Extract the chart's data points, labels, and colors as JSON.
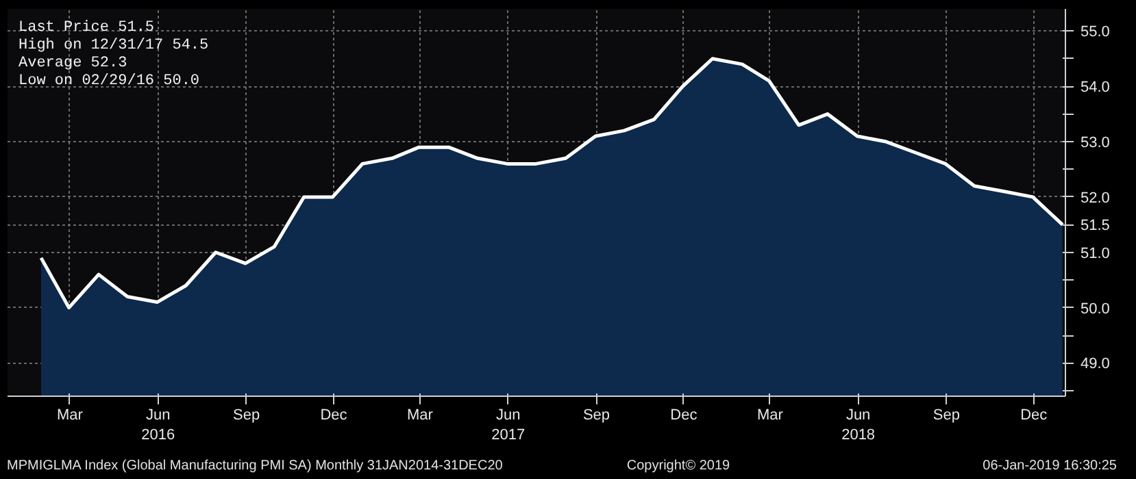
{
  "chart_data": {
    "type": "area",
    "x": [
      "2016-01-31",
      "2016-02-29",
      "2016-03-31",
      "2016-04-30",
      "2016-05-31",
      "2016-06-30",
      "2016-07-31",
      "2016-08-31",
      "2016-09-30",
      "2016-10-31",
      "2016-11-30",
      "2016-12-31",
      "2017-01-31",
      "2017-02-28",
      "2017-03-31",
      "2017-04-30",
      "2017-05-31",
      "2017-06-30",
      "2017-07-31",
      "2017-08-31",
      "2017-09-30",
      "2017-10-31",
      "2017-11-30",
      "2017-12-31",
      "2018-01-31",
      "2018-02-28",
      "2018-03-31",
      "2018-04-30",
      "2018-05-31",
      "2018-06-30",
      "2018-07-31",
      "2018-08-31",
      "2018-09-30",
      "2018-10-31",
      "2018-11-30",
      "2018-12-31"
    ],
    "series": [
      {
        "color": "#0d2a4d",
        "values": [
          50.9,
          50.0,
          50.6,
          50.2,
          50.1,
          50.4,
          51.0,
          50.8,
          51.1,
          52.0,
          52.0,
          52.6,
          52.7,
          52.9,
          52.9,
          52.7,
          52.6,
          52.6,
          52.7,
          53.1,
          53.2,
          53.4,
          54.0,
          54.5,
          54.4,
          54.1,
          53.3,
          53.5,
          53.1,
          53.0,
          52.8,
          52.6,
          52.2,
          52.1,
          52.0,
          51.5
        ]
      }
    ],
    "xlim": [
      "2015-12-27",
      "2019-01-03"
    ],
    "xticks": [
      {
        "value": "2016-03-01",
        "label": "Mar"
      },
      {
        "value": "2016-06-01",
        "label": "Jun\n2016"
      },
      {
        "value": "2016-09-01",
        "label": "Sep"
      },
      {
        "value": "2016-12-01",
        "label": "Dec"
      },
      {
        "value": "2017-03-01",
        "label": "Mar"
      },
      {
        "value": "2017-06-01",
        "label": "Jun\n2017"
      },
      {
        "value": "2017-09-01",
        "label": "Sep"
      },
      {
        "value": "2017-12-01",
        "label": "Dec"
      },
      {
        "value": "2018-03-01",
        "label": "Mar"
      },
      {
        "value": "2018-06-01",
        "label": "Jun\n2018"
      },
      {
        "value": "2018-09-01",
        "label": "Sep"
      },
      {
        "value": "2018-12-01",
        "label": "Dec"
      }
    ],
    "ylim": [
      48.4,
      55.4
    ],
    "yticks": [
      {
        "value": 48.5,
        "label": null
      },
      {
        "value": 49,
        "label": "49.0"
      },
      {
        "value": 49.5,
        "label": null
      },
      {
        "value": 50,
        "label": "50.0"
      },
      {
        "value": 50.5,
        "label": null
      },
      {
        "value": 51,
        "label": "51.0"
      },
      {
        "value": 51.5,
        "label": "51.5"
      },
      {
        "value": 52,
        "label": "52.0"
      },
      {
        "value": 52.5,
        "label": null
      },
      {
        "value": 53,
        "label": "53.0"
      },
      {
        "value": 53.5,
        "label": null
      },
      {
        "value": 54,
        "label": "54.0"
      },
      {
        "value": 54.5,
        "label": null
      },
      {
        "value": 55,
        "label": "55.0"
      }
    ],
    "grid": true,
    "annotations": [
      "Last Price        51.5",
      "High on 12/31/17  54.5",
      "Average           52.3",
      "Low on 02/29/16   50.0",
      "MPMIGLMA Index (Global Manufacturing PMI SA)  Monthly 31JAN2014-31DEC20",
      "Copyright© 2019",
      "06-Jan-2019 16:30:25"
    ]
  }
}
